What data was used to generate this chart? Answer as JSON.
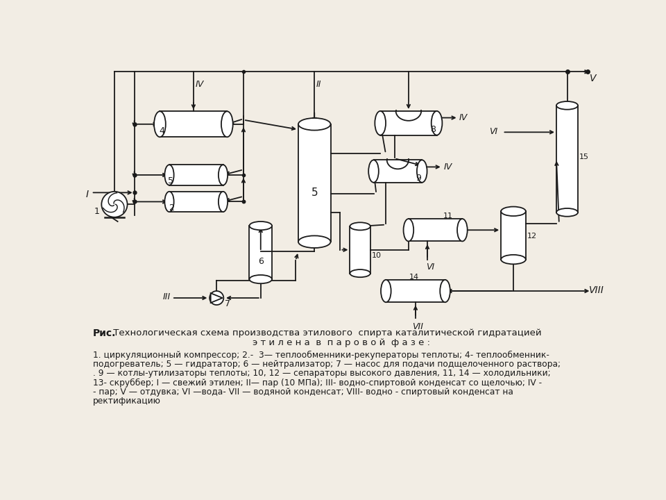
{
  "bg_color": "#f2ede4",
  "line_color": "#1a1a1a",
  "title_bold": "Рис.",
  "title_line1": " Технологическая схема производства этилового  спирта каталитической гидратацией",
  "title_line2": "э т и л е н а  в  п а р о в о й  ф а з е :",
  "caption": "1. циркуляционный компрессор; 2.-  3— теплообменники-рекуператоры теплоты; 4- теплообменник-подогреватель; 5 — гидрататор; 6 — нейтрализатор; 7 — насос для подачи подщелоченного раствора;\n. 9 — котлы-утилизаторы теплоты; 10, 12 — сепараторы высокого давления, 11, 14 — холодильники;\n13- скруббер; I — свежий этилен; II— пар (10 МПа); III- водно-спиртовой конденсат со щелочью; IV -\n- пар; V — отдувка; VI —вода- VII — водяной конденсат; VIII- водно - спиртовый конденсат на\nректификацию"
}
